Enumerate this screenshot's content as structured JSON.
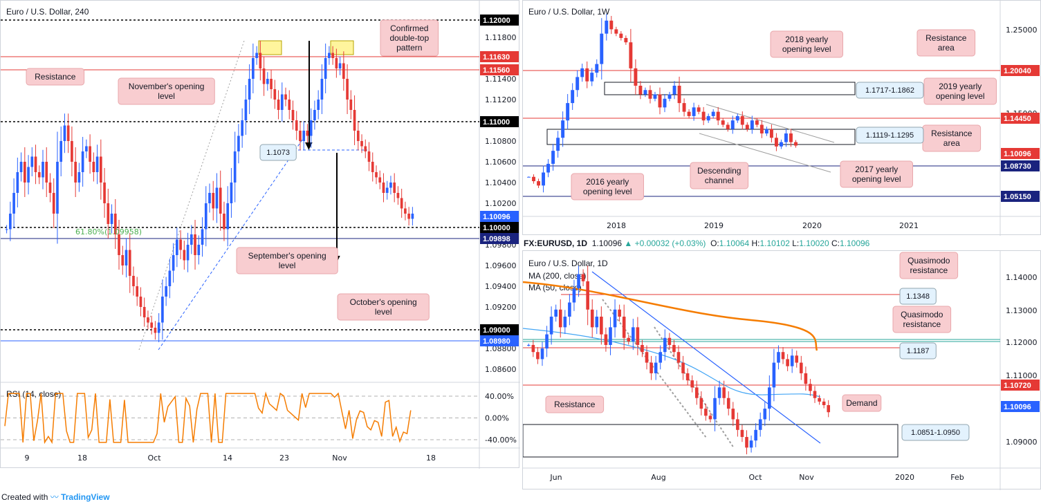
{
  "footer": {
    "created": "Created with",
    "brand": "TradingView"
  },
  "header_1d": {
    "symbol": "FX:EURUSD, 1D",
    "price": "1.10096",
    "change": "+0.00032 (+0.03%)",
    "o_label": "O:",
    "o": "1.10064",
    "h_label": "H:",
    "h": "1.10102",
    "l_label": "L:",
    "l": "1.10020",
    "c_label": "C:",
    "c": "1.10096"
  },
  "chart_data": [
    {
      "type": "candlestick",
      "title": "Euro / U.S. Dollar, 240",
      "y_ticks": [
        "1.11800",
        "1.11400",
        "1.11200",
        "1.10800",
        "1.10600",
        "1.10400",
        "1.10200",
        "1.09800",
        "1.09600",
        "1.09400",
        "1.09200",
        "1.08800",
        "1.08600"
      ],
      "x_ticks": [
        "9",
        "18",
        "Oct",
        "14",
        "23",
        "Nov",
        "18"
      ],
      "ylim": [
        1.085,
        1.121
      ],
      "price_tags": [
        {
          "label": "1.12000",
          "color": "#000000"
        },
        {
          "label": "1.11630",
          "color": "#e53935"
        },
        {
          "label": "1.11560",
          "color": "#e53935"
        },
        {
          "label": "1.11000",
          "color": "#000000"
        },
        {
          "label": "1.10096",
          "color": "#2962ff"
        },
        {
          "label": "1.10000",
          "color": "#000000"
        },
        {
          "label": "1.09898",
          "color": "#1a237e"
        },
        {
          "label": "1.09000",
          "color": "#000000"
        },
        {
          "label": "1.08980",
          "color": "#2962ff"
        }
      ],
      "annotations": [
        {
          "text": "Resistance"
        },
        {
          "text": "November's opening level"
        },
        {
          "text": "Confirmed double-top pattern"
        },
        {
          "text": "September's opening level"
        },
        {
          "text": "October's opening level"
        },
        {
          "text": "1.1073"
        },
        {
          "text": "61.80%(1.09958)"
        }
      ],
      "close_path": [
        1.0995,
        1.101,
        1.103,
        1.105,
        1.106,
        1.104,
        1.1055,
        1.1065,
        1.105,
        1.1045,
        1.106,
        1.104,
        1.103,
        1.101,
        1.106,
        1.108,
        1.1095,
        1.108,
        1.106,
        1.104,
        1.105,
        1.107,
        1.1075,
        1.106,
        1.105,
        1.1065,
        1.104,
        1.102,
        1.1,
        1.101,
        1.099,
        1.097,
        1.096,
        1.0975,
        1.095,
        1.094,
        1.093,
        1.092,
        1.091,
        1.0905,
        1.09,
        1.0895,
        1.0905,
        1.093,
        1.094,
        1.0955,
        1.097,
        1.0985,
        1.0975,
        1.0965,
        1.098,
        1.099,
        1.097,
        1.098,
        1.0995,
        1.102,
        1.103,
        1.1015,
        1.1035,
        1.101,
        1.0995,
        1.102,
        1.104,
        1.107,
        1.1085,
        1.11,
        1.112,
        1.114,
        1.116,
        1.1165,
        1.115,
        1.1135,
        1.114,
        1.113,
        1.112,
        1.111,
        1.1125,
        1.112,
        1.111,
        1.11,
        1.109,
        1.108,
        1.109,
        1.1085,
        1.11,
        1.111,
        1.112,
        1.114,
        1.116,
        1.1165,
        1.116,
        1.115,
        1.1155,
        1.114,
        1.112,
        1.111,
        1.109,
        1.108,
        1.1075,
        1.107,
        1.106,
        1.105,
        1.1045,
        1.104,
        1.103,
        1.1035,
        1.104,
        1.103,
        1.1025,
        1.1015,
        1.101,
        1.1005,
        1.101
      ],
      "rsi": {
        "label": "RSI (14, close)",
        "ticks": [
          "40.00%",
          "0.00%",
          "-40.00%"
        ]
      }
    },
    {
      "type": "candlestick",
      "title": "Euro / U.S. Dollar, 1W",
      "y_ticks": [
        "1.25000",
        "1.15000"
      ],
      "x_ticks": [
        "2018",
        "2019",
        "2020",
        "2021"
      ],
      "ylim": [
        1.025,
        1.26
      ],
      "price_tags": [
        {
          "label": "1.20040",
          "color": "#e53935"
        },
        {
          "label": "1.14450",
          "color": "#e53935"
        },
        {
          "label": "1.10096",
          "color": "#e53935"
        },
        {
          "label": "1.08730",
          "color": "#1a237e"
        },
        {
          "label": "1.05150",
          "color": "#1a237e"
        }
      ],
      "annotations": [
        {
          "text": "2018 yearly opening level"
        },
        {
          "text": "Resistance area"
        },
        {
          "text": "2019 yearly opening level"
        },
        {
          "text": "Resistance area"
        },
        {
          "text": "Descending channel"
        },
        {
          "text": "2016 yearly opening level"
        },
        {
          "text": "2017 yearly opening level"
        },
        {
          "text": "1.1717-1.1862"
        },
        {
          "text": "1.1119-1.1295"
        }
      ],
      "close_path": [
        1.065,
        1.06,
        1.055,
        1.07,
        1.08,
        1.095,
        1.11,
        1.13,
        1.15,
        1.165,
        1.18,
        1.19,
        1.175,
        1.185,
        1.195,
        1.23,
        1.245,
        1.235,
        1.23,
        1.225,
        1.22,
        1.19,
        1.17,
        1.16,
        1.165,
        1.155,
        1.16,
        1.145,
        1.155,
        1.16,
        1.17,
        1.15,
        1.14,
        1.135,
        1.145,
        1.14,
        1.13,
        1.135,
        1.14,
        1.13,
        1.125,
        1.12,
        1.13,
        1.135,
        1.125,
        1.12,
        1.13,
        1.125,
        1.115,
        1.12,
        1.11,
        1.1,
        1.105,
        1.115,
        1.105,
        1.101
      ]
    },
    {
      "type": "candlestick",
      "title": "Euro / U.S. Dollar, 1D",
      "y_ticks": [
        "1.14000",
        "1.13000",
        "1.12000",
        "1.11000",
        "1.09000"
      ],
      "x_ticks": [
        "Jun",
        "Aug",
        "Oct",
        "Nov",
        "2020",
        "Feb"
      ],
      "ylim": [
        1.086,
        1.145
      ],
      "legend": [
        "MA (200, close)",
        "MA (50, close)"
      ],
      "price_tags": [
        {
          "label": "1.10720",
          "color": "#e53935"
        },
        {
          "label": "1.10096",
          "color": "#2962ff"
        }
      ],
      "annotations": [
        {
          "text": "Quasimodo resistance"
        },
        {
          "text": "Quasimodo resistance"
        },
        {
          "text": "Resistance"
        },
        {
          "text": "Demand"
        },
        {
          "text": "1.1348"
        },
        {
          "text": "1.1187"
        },
        {
          "text": "1.0851-1.0950"
        }
      ],
      "close_path": [
        1.12,
        1.118,
        1.116,
        1.119,
        1.123,
        1.128,
        1.13,
        1.125,
        1.128,
        1.132,
        1.136,
        1.14,
        1.138,
        1.13,
        1.125,
        1.128,
        1.123,
        1.12,
        1.125,
        1.13,
        1.128,
        1.122,
        1.121,
        1.125,
        1.12,
        1.118,
        1.115,
        1.112,
        1.115,
        1.118,
        1.122,
        1.12,
        1.118,
        1.115,
        1.112,
        1.11,
        1.108,
        1.105,
        1.102,
        1.1,
        1.099,
        1.105,
        1.108,
        1.105,
        1.102,
        1.099,
        1.096,
        1.094,
        1.091,
        1.093,
        1.096,
        1.099,
        1.102,
        1.108,
        1.115,
        1.118,
        1.116,
        1.114,
        1.117,
        1.115,
        1.112,
        1.109,
        1.107,
        1.105,
        1.104,
        1.103,
        1.101
      ]
    }
  ]
}
